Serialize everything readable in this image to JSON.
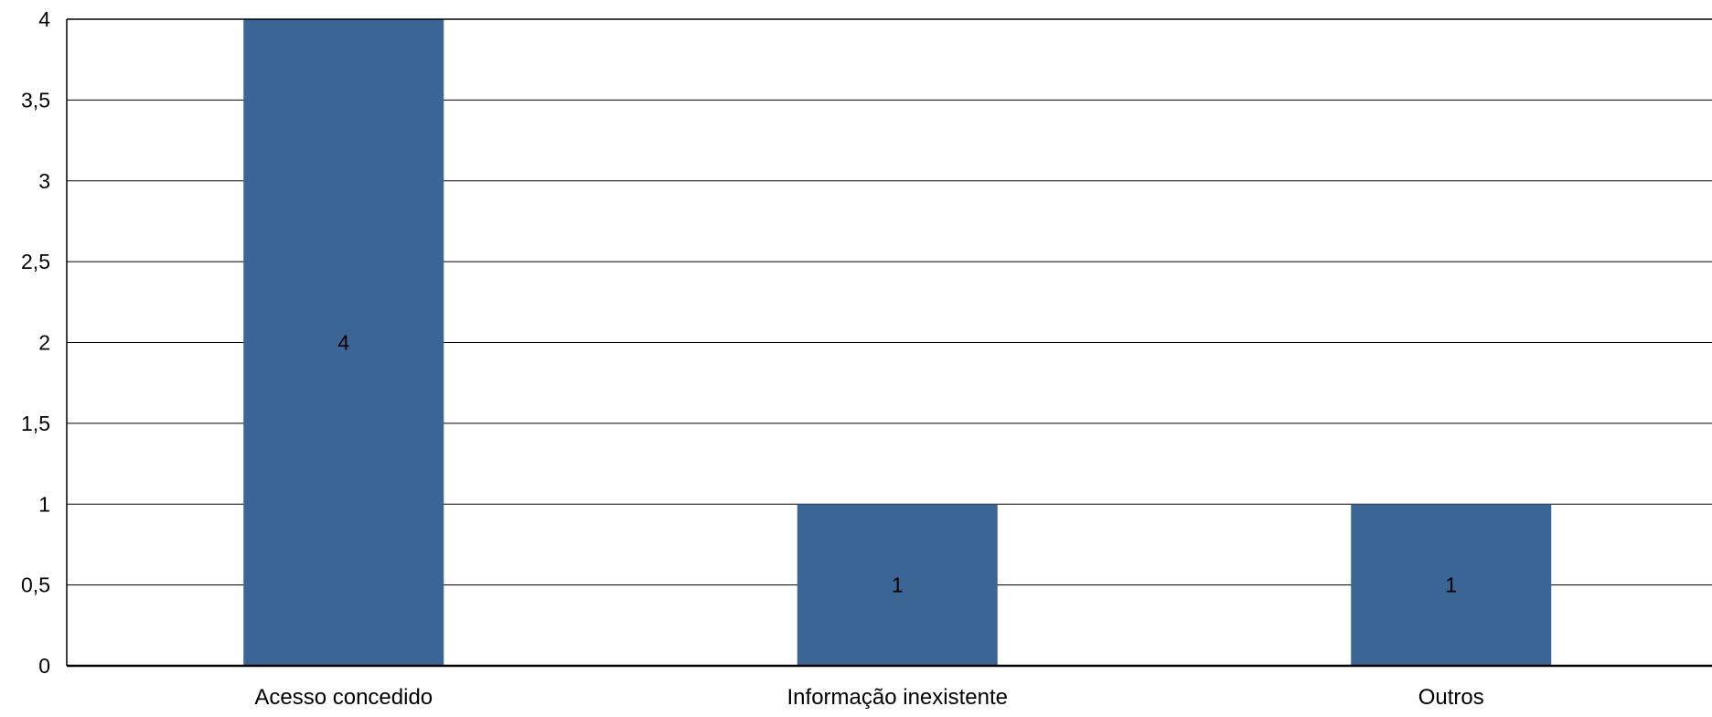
{
  "chart_data": {
    "type": "bar",
    "categories": [
      "Acesso concedido",
      "Informação inexistente",
      "Outros"
    ],
    "values": [
      4,
      1,
      1
    ],
    "data_labels": [
      "4",
      "1",
      "1"
    ],
    "title": "",
    "xlabel": "",
    "ylabel": "",
    "ylim": [
      0,
      4
    ],
    "y_ticks": [
      {
        "value": 0,
        "label": "0"
      },
      {
        "value": 0.5,
        "label": "0,5"
      },
      {
        "value": 1,
        "label": "1"
      },
      {
        "value": 1.5,
        "label": "1,5"
      },
      {
        "value": 2,
        "label": "2"
      },
      {
        "value": 2.5,
        "label": "2,5"
      },
      {
        "value": 3,
        "label": "3"
      },
      {
        "value": 3.5,
        "label": "3,5"
      },
      {
        "value": 4,
        "label": "4"
      }
    ],
    "grid": true,
    "legend": "none",
    "bar_color": "#3a6594",
    "grid_color": "#000000"
  }
}
